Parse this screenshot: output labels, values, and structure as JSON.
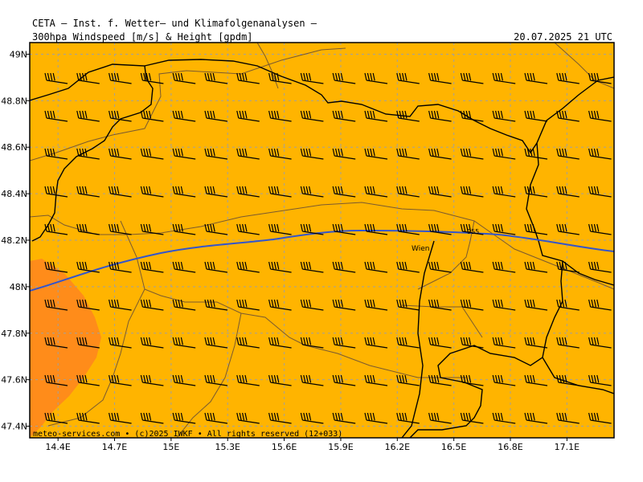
{
  "header": {
    "title": "CETA – Inst. f. Wetter– und Klimafolgenanalysen –",
    "parameter": "300hpa Windspeed [m/s] & Height [gpdm]",
    "valid_time": "20.07.2025 21 UTC"
  },
  "map": {
    "lon_range": [
      14.25,
      17.35
    ],
    "lat_range": [
      47.35,
      49.05
    ],
    "lon_ticks": [
      "14.4E",
      "14.7E",
      "15E",
      "15.3E",
      "15.6E",
      "15.9E",
      "16.2E",
      "16.5E",
      "16.8E",
      "17.1E"
    ],
    "lat_ticks": [
      "49N",
      "48.8N",
      "48.6N",
      "48.4N",
      "48.2N",
      "48N",
      "47.8N",
      "47.6N",
      "47.4N"
    ],
    "city_label": "Wien",
    "isoline_label": "955",
    "credit": "meteo-services.com • (c)2025 IWKF • All rights reserved (12+033)",
    "colors": {
      "wind_fill_main": "#ffb400",
      "wind_fill_strong": "#ff8c1a",
      "isoline": "#3355cc",
      "borders": "#000000",
      "regions": "#7a5a30",
      "grid": "#a0a0a0"
    }
  }
}
